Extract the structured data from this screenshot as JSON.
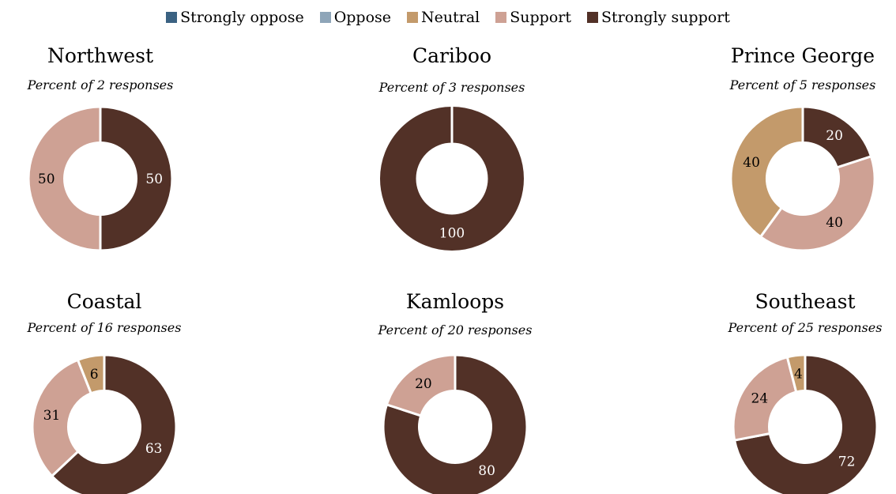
{
  "legend": [
    {
      "label": "Strongly oppose",
      "color": "#3b6282"
    },
    {
      "label": "Oppose",
      "color": "#8ea5b8"
    },
    {
      "label": "Neutral",
      "color": "#c39a6b"
    },
    {
      "label": "Support",
      "color": "#cea194"
    },
    {
      "label": "Strongly support",
      "color": "#523127"
    }
  ],
  "chart_data": [
    {
      "type": "pie",
      "title": "Northwest",
      "subtitle": "Percent of 2 responses",
      "categories": [
        "Strongly support",
        "Support",
        "Neutral"
      ],
      "values": [
        50,
        50,
        0
      ]
    },
    {
      "type": "pie",
      "title": "Cariboo",
      "subtitle": "Percent of 3 responses",
      "categories": [
        "Strongly support",
        "Support",
        "Neutral"
      ],
      "values": [
        100,
        0,
        0
      ]
    },
    {
      "type": "pie",
      "title": "Prince George",
      "subtitle": "Percent of 5 responses",
      "categories": [
        "Strongly support",
        "Support",
        "Neutral"
      ],
      "values": [
        20,
        40,
        40
      ]
    },
    {
      "type": "pie",
      "title": "Coastal",
      "subtitle": "Percent of 16 responses",
      "categories": [
        "Strongly support",
        "Support",
        "Neutral"
      ],
      "values": [
        63,
        31,
        6
      ]
    },
    {
      "type": "pie",
      "title": "Kamloops",
      "subtitle": "Percent of 20 responses",
      "categories": [
        "Strongly support",
        "Support",
        "Neutral"
      ],
      "values": [
        80,
        20,
        0
      ]
    },
    {
      "type": "pie",
      "title": "Southeast",
      "subtitle": "Percent of 25 responses",
      "categories": [
        "Strongly support",
        "Support",
        "Neutral"
      ],
      "values": [
        72,
        24,
        4
      ]
    }
  ]
}
